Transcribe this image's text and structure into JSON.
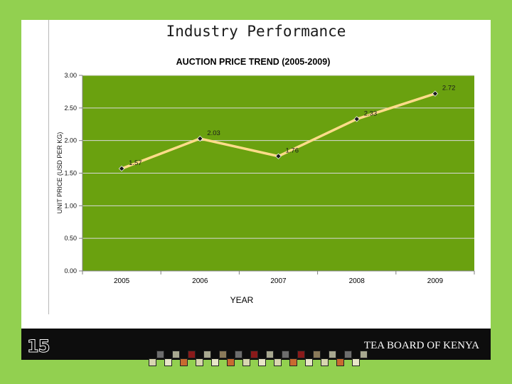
{
  "slide": {
    "title": "Industry Performance",
    "number": "15",
    "footer_org": "TEA BOARD OF KENYA"
  },
  "colors": {
    "background": "#92d050",
    "plot_area": "#6aa10f",
    "line": "#ffdc8a",
    "marker": "#1a1a1a",
    "footer": "#0d0d0d"
  },
  "chart_data": {
    "type": "line",
    "title": "AUCTION PRICE TREND (2005-2009)",
    "xlabel": "YEAR",
    "ylabel": "UNIT PRICE (USD PER KG)",
    "categories": [
      "2005",
      "2006",
      "2007",
      "2008",
      "2009"
    ],
    "series": [
      {
        "values": [
          1.57,
          2.03,
          1.76,
          2.33,
          2.72
        ]
      }
    ],
    "data_labels": [
      "1.57",
      "2.03",
      "1.76",
      "2.33",
      "2.72"
    ],
    "ylim": [
      0,
      3
    ],
    "yticks": [
      "0.00",
      "0.50",
      "1.00",
      "1.50",
      "2.00",
      "2.50",
      "3.00"
    ],
    "grid": true,
    "legend": "none"
  }
}
